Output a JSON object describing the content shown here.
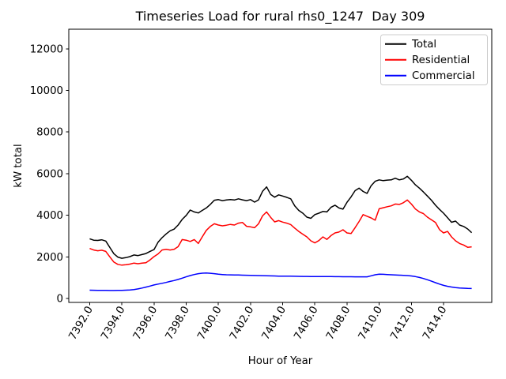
{
  "figure": {
    "title": "Timeseries Load for rural rhs0_1247  Day 309",
    "xlabel": "Hour of Year",
    "ylabel": "kW total"
  },
  "chart_data": {
    "type": "line",
    "title": "Timeseries Load for rural rhs0_1247  Day 309",
    "xlabel": "Hour of Year",
    "ylabel": "kW total",
    "grid": false,
    "xlim": [
      7390.7,
      7417.0
    ],
    "ylim": [
      -190,
      12940
    ],
    "xticks": [
      7392,
      7394,
      7396,
      7398,
      7400,
      7402,
      7404,
      7406,
      7408,
      7410,
      7412,
      7414
    ],
    "xtick_labels": [
      "7392.0",
      "7394.0",
      "7396.0",
      "7398.0",
      "7400.0",
      "7402.0",
      "7404.0",
      "7406.0",
      "7408.0",
      "7410.0",
      "7412.0",
      "7414.0"
    ],
    "xtick_rotation_deg": 60,
    "yticks": [
      0,
      2000,
      4000,
      6000,
      8000,
      10000,
      12000
    ],
    "x_start": 7392.0,
    "x_step": 0.25,
    "legend": {
      "position": "upper right",
      "border_color": "#cccccc",
      "entries": [
        {
          "label": "Total",
          "color": "#000000"
        },
        {
          "label": "Residential",
          "color": "#ff0000"
        },
        {
          "label": "Commercial",
          "color": "#0000ff"
        }
      ]
    },
    "series": [
      {
        "name": "Total",
        "color": "#000000",
        "values": [
          2870,
          2800,
          2790,
          2820,
          2760,
          2450,
          2150,
          1990,
          1930,
          1960,
          2010,
          2090,
          2060,
          2110,
          2160,
          2260,
          2350,
          2700,
          2920,
          3100,
          3250,
          3330,
          3530,
          3800,
          3990,
          4250,
          4160,
          4110,
          4230,
          4350,
          4520,
          4720,
          4750,
          4700,
          4730,
          4750,
          4730,
          4790,
          4740,
          4700,
          4750,
          4630,
          4740,
          5150,
          5360,
          5000,
          4870,
          4980,
          4920,
          4860,
          4790,
          4450,
          4230,
          4100,
          3910,
          3850,
          4030,
          4100,
          4180,
          4160,
          4380,
          4480,
          4350,
          4290,
          4620,
          4880,
          5180,
          5300,
          5140,
          5050,
          5420,
          5630,
          5700,
          5660,
          5690,
          5700,
          5780,
          5700,
          5740,
          5870,
          5680,
          5460,
          5300,
          5120,
          4920,
          4720,
          4480,
          4280,
          4100,
          3880,
          3660,
          3720,
          3530,
          3460,
          3340,
          3160
        ]
      },
      {
        "name": "Residential",
        "color": "#ff0000",
        "values": [
          2400,
          2330,
          2290,
          2320,
          2260,
          2000,
          1750,
          1640,
          1600,
          1620,
          1650,
          1700,
          1670,
          1700,
          1720,
          1850,
          2010,
          2140,
          2330,
          2360,
          2330,
          2360,
          2490,
          2830,
          2800,
          2740,
          2830,
          2640,
          2960,
          3270,
          3460,
          3590,
          3530,
          3490,
          3520,
          3560,
          3530,
          3620,
          3650,
          3470,
          3440,
          3400,
          3590,
          3970,
          4160,
          3900,
          3680,
          3740,
          3670,
          3620,
          3550,
          3380,
          3220,
          3090,
          2960,
          2770,
          2670,
          2780,
          2960,
          2840,
          3020,
          3150,
          3190,
          3300,
          3150,
          3120,
          3400,
          3700,
          4030,
          3950,
          3870,
          3760,
          4310,
          4360,
          4410,
          4450,
          4540,
          4520,
          4600,
          4730,
          4540,
          4300,
          4160,
          4080,
          3910,
          3780,
          3650,
          3310,
          3150,
          3220,
          2960,
          2770,
          2640,
          2570,
          2460,
          2480
        ]
      },
      {
        "name": "Commercial",
        "color": "#0000ff",
        "values": [
          400,
          395,
          390,
          388,
          385,
          383,
          382,
          385,
          390,
          400,
          410,
          430,
          460,
          500,
          545,
          595,
          650,
          690,
          730,
          770,
          820,
          860,
          915,
          975,
          1040,
          1100,
          1150,
          1190,
          1215,
          1220,
          1210,
          1190,
          1165,
          1150,
          1140,
          1135,
          1130,
          1125,
          1120,
          1115,
          1110,
          1105,
          1100,
          1095,
          1090,
          1085,
          1080,
          1075,
          1072,
          1070,
          1068,
          1065,
          1062,
          1060,
          1058,
          1056,
          1055,
          1053,
          1052,
          1050,
          1050,
          1048,
          1046,
          1045,
          1044,
          1042,
          1040,
          1040,
          1038,
          1040,
          1090,
          1140,
          1165,
          1160,
          1150,
          1140,
          1130,
          1120,
          1110,
          1100,
          1080,
          1050,
          1010,
          960,
          900,
          830,
          760,
          690,
          630,
          585,
          550,
          525,
          505,
          492,
          483,
          478
        ]
      }
    ]
  }
}
